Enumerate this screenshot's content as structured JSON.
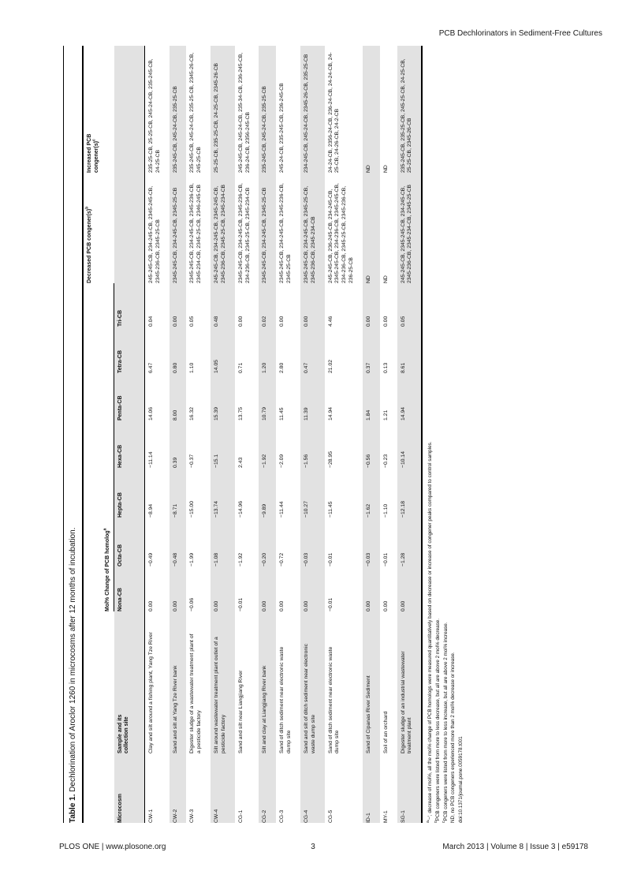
{
  "page": {
    "running_head": "PCB Dechlorinators in Sediment-Free Cultures",
    "footer": {
      "left": "PLOS ONE | www.plosone.org",
      "page_number": "3",
      "right": "March 2013 | Volume 8 | Issue 3 | e59178"
    }
  },
  "colors": {
    "row_shade": "#e2e2e2",
    "rule": "#000000",
    "text": "#111111"
  },
  "table": {
    "caption": {
      "label": "Table 1.",
      "text": "Dechlorination of Aroclor 1260 in microcosms after 12 months of incubation."
    },
    "headers": {
      "microcosm": "Microcosm",
      "sample": "Sample and its\ncollection site",
      "homolog_group": {
        "label": "Mol% Change of PCB homolog",
        "sup": "a"
      },
      "homologs": [
        "Nona-CB",
        "Octa-CB",
        "Hepta-CB",
        "Hexa-CB",
        "Penta-CB",
        "Tetra-CB",
        "Tri-CB"
      ],
      "decreased": {
        "label": "Decreased PCB congener(s)",
        "sup": "b"
      },
      "increased": {
        "label": "Increased PCB\ncongener(s)",
        "sup": "c"
      }
    },
    "rows": [
      {
        "id": "CW-1",
        "site": "Clay and silt around a fishing plant, Yang Tze River",
        "values": [
          "0.00",
          "−0.49",
          "−8.94",
          "−11.14",
          "14.06",
          "6.47",
          "0.04"
        ],
        "decreased": "245-245-CB, 234-245-CB, 2345-245-CB, 2345-236-CB, 2345-25-CB",
        "increased": "235-25-CB, 25-25-CB, 245-24-CB, 235-245-CB, 24-25-CB"
      },
      {
        "id": "CW-2",
        "site": "Sand and silt at Yang Tze River bank",
        "values": [
          "0.00",
          "−0.48",
          "−8.71",
          "0.39",
          "8.00",
          "0.80",
          "0.00"
        ],
        "decreased": "2345-245-CB, 234-245-CB, 2345-25-CB",
        "increased": "235-245-CB, 245-24-CB, 235-25-CB"
      },
      {
        "id": "CW-3",
        "site": "Digester sludge of a wastewater treatment plant of a pesticide factory",
        "values": [
          "−0.06",
          "−1.99",
          "−15.00",
          "−0.37",
          "16.32",
          "1.10",
          "0.05"
        ],
        "decreased": "2345-245-CB, 234-245-CB, 2345-236-CB, 2345-234-CB, 2345-25-CB, 2346-245-CB",
        "increased": "235-245-CB, 245-24-CB, 235-25-CB, 2345-26-CB, 245-25-CB"
      },
      {
        "id": "CW-4",
        "site": "Silt around wastewater treatment plant outlet of a pesticide factory",
        "values": [
          "0.00",
          "−1.08",
          "−13.74",
          "−15.1",
          "15.39",
          "14.05",
          "0.48"
        ],
        "decreased": "245-245-CB, 234-245-CB, 2345-245-CB, 2345-236-CB, 2345-25-CB, 2345-234-CB",
        "increased": "25-25-CB, 235-25-CB, 24-25-CB, 2345-26-CB"
      },
      {
        "id": "CG-1",
        "site": "Sand and silt near Liangjiang River",
        "values": [
          "−0.01",
          "−1.92",
          "−14.96",
          "2.43",
          "13.75",
          "0.71",
          "0.00"
        ],
        "decreased": "2345-245-CB, 234-245-CB, 2345-236-CB, 234-236-CB, 2345-25-CB, 2345-234-CB",
        "increased": "245-245-CB, 245-24-CB, 235-34-CB, 236-245-CB, 236-24-CB, 2356-245-CB"
      },
      {
        "id": "CG-2",
        "site": "Silt and clay at Liangjiang River bank",
        "values": [
          "0.00",
          "−0.20",
          "−9.89",
          "−1.92",
          "10.79",
          "1.20",
          "0.02"
        ],
        "decreased": "2345-245-CB, 234-245-CB, 2345-25-CB",
        "increased": "235-245-CB, 245-24-CB, 235-25-CB"
      },
      {
        "id": "CG-3",
        "site": "Sand of ditch sediment near electronic waste dump site",
        "values": [
          "0.00",
          "−0.72",
          "−11.44",
          "−2.09",
          "11.45",
          "2.80",
          "0.00"
        ],
        "decreased": "2345-245-CB, 234-245-CB, 2345-236-CB, 2345-25-CB",
        "increased": "245-24-CB, 235-245-CB, 236-245-CB"
      },
      {
        "id": "CG-4",
        "site": "Sand and silt of ditch sediment near electronic waste dump site",
        "values": [
          "0.00",
          "−0.03",
          "−10.27",
          "−1.56",
          "11.39",
          "0.47",
          "0.00"
        ],
        "decreased": "2345-245-CB, 234-245-CB, 2345-25-CB, 2345-236-CB, 2345-234-CB",
        "increased": "234-245-CB, 245-24-CB, 2345-26-CB, 235-25-CB"
      },
      {
        "id": "CG-5",
        "site": "Sand of ditch sediment near electronic waste dump site",
        "values": [
          "−0.01",
          "−0.01",
          "−11.45",
          "−28.95",
          "14.94",
          "21.02",
          "4.46"
        ],
        "decreased": "245-245-CB, 236-245-CB, 234-245-CB, 2345-245-CB, 234-236-CB, 2345-245-CB, 234-236-CB, 2345-25-CB, 2345-236-CB, 236-25-CB",
        "increased": "24-24-CB, 2356-24-CB, 236-24-CB, 24-24-CB, 24-25-CB, 24-26-CB, 24-2-CB"
      },
      {
        "id": "ID-1",
        "site": "Sand of Cipanas River Sediment",
        "values": [
          "0.00",
          "−0.03",
          "−1.62",
          "−0.56",
          "1.84",
          "0.37",
          "0.00"
        ],
        "decreased": "ND",
        "increased": "ND"
      },
      {
        "id": "MY-1",
        "site": "Soil of an orchard",
        "values": [
          "0.00",
          "−0.01",
          "−1.10",
          "−0.23",
          "1.21",
          "0.13",
          "0.00"
        ],
        "decreased": "ND",
        "increased": "ND"
      },
      {
        "id": "SG-1",
        "site": "Digester sludge of an industrial wastewater treatment plant",
        "values": [
          "0.00",
          "−1.28",
          "−12.18",
          "−10.14",
          "14.94",
          "8.61",
          "0.05"
        ],
        "decreased": "245-245-CB, 2345-245-CB, 234-245-CB, 2345-236-CB, 2345-234-CB, 2345-25-CB",
        "increased": "235-245-CB, 235-25-CB, 245-25-CB, 24-25-CB, 25-25-CB, 2345-26-CB"
      }
    ],
    "footnotes": [
      {
        "sup": "a",
        "text": "'−', decrease of mol%, all the mol% change of PCB homologs were measured quantitatively based on decrease or increase of congener peaks compared to control samples."
      },
      {
        "sup": "b",
        "text": "PCB congeners were listed from more to less decrease, but all are above 2 mol% decrease."
      },
      {
        "sup": "c",
        "text": "PCB congeners were listed from more to less increase, but all are above 2 mol% increase."
      },
      {
        "sup": "",
        "text": "ND, no PCB congeners experienced more than 2 mol% decrease or increase."
      },
      {
        "sup": "",
        "text": "doi:10.1371/journal.pone.0059178.t001"
      }
    ]
  }
}
